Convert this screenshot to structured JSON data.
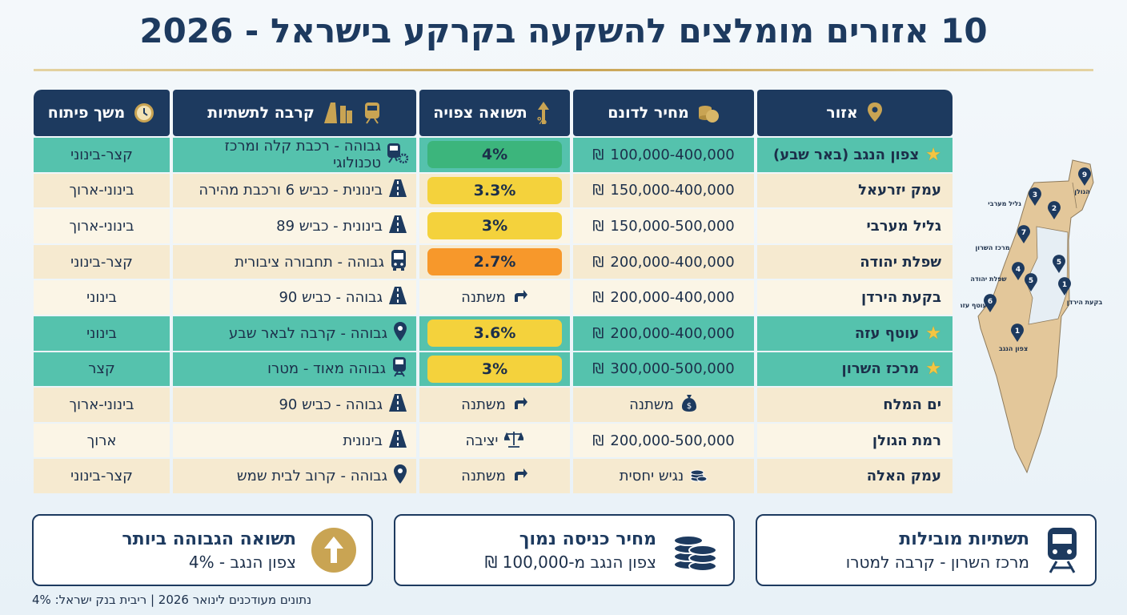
{
  "title": "10 אזורים מומלצים להשקעה בקרקע בישראל - 2026",
  "currency": "₪",
  "headers": {
    "region": "אזור",
    "price": "מחיר לדונם",
    "return": "תשואה צפויה",
    "infra": "קרבה לתשתיות",
    "duration": "משך פיתוח"
  },
  "rows": [
    {
      "region": "צפון הנגב (באר שבע)",
      "starred": true,
      "price": "100,000-400,000",
      "price_icon": "",
      "ret": "4%",
      "ret_color": "#3cb57c",
      "ret_icon": "",
      "infra_icon": "train-gear-icon",
      "infra": "גבוהה - רכבת קלה ומרכז טכנולוגי",
      "duration": "קצר-בינוני"
    },
    {
      "region": "עמק יזרעאל",
      "starred": false,
      "price": "150,000-400,000",
      "price_icon": "",
      "ret": "3.3%",
      "ret_color": "#f4d23c",
      "ret_icon": "",
      "infra_icon": "road-icon",
      "infra": "בינונית - כביש 6 ורכבת מהירה",
      "duration": "בינוני-ארוך"
    },
    {
      "region": "גליל מערבי",
      "starred": false,
      "price": "150,000-500,000",
      "price_icon": "",
      "ret": "3%",
      "ret_color": "#f4d23c",
      "ret_icon": "",
      "infra_icon": "road-icon",
      "infra": "בינונית - כביש 89",
      "duration": "בינוני-ארוך"
    },
    {
      "region": "שפלת יהודה",
      "starred": false,
      "price": "200,000-400,000",
      "price_icon": "",
      "ret": "2.7%",
      "ret_color": "#f7982b",
      "ret_icon": "",
      "infra_icon": "bus-icon",
      "infra": "גבוהה - תחבורה ציבורית",
      "duration": "קצר-בינוני"
    },
    {
      "region": "בקעת הירדן",
      "starred": false,
      "price": "200,000-400,000",
      "price_icon": "",
      "ret": "משתנה",
      "ret_color": "",
      "ret_icon": "arrow-icon",
      "infra_icon": "road-icon",
      "infra": "גבוהה - כביש 90",
      "duration": "בינוני"
    },
    {
      "region": "עוטף עזה",
      "starred": true,
      "price": "200,000-400,000",
      "price_icon": "",
      "ret": "3.6%",
      "ret_color": "#f4d23c",
      "ret_icon": "",
      "infra_icon": "pin-icon",
      "infra": "גבוהה - קרבה לבאר שבע",
      "duration": "בינוני"
    },
    {
      "region": "מרכז השרון",
      "starred": true,
      "price": "300,000-500,000",
      "price_icon": "",
      "ret": "3%",
      "ret_color": "#f4d23c",
      "ret_icon": "",
      "infra_icon": "train-icon",
      "infra": "גבוהה מאוד - מטרו",
      "duration": "קצר"
    },
    {
      "region": "ים המלח",
      "starred": false,
      "price": "משתנה",
      "price_icon": "money-bag-icon",
      "ret": "משתנה",
      "ret_color": "",
      "ret_icon": "arrow-icon",
      "infra_icon": "road-icon",
      "infra": "גבוהה - כביש 90",
      "duration": "בינוני-ארוך"
    },
    {
      "region": "רמת הגולן",
      "starred": false,
      "price": "200,000-500,000",
      "price_icon": "",
      "ret": "יציבה",
      "ret_color": "",
      "ret_icon": "scale-icon",
      "infra_icon": "road-icon",
      "infra": "בינונית",
      "duration": "ארוך"
    },
    {
      "region": "עמק האלה",
      "starred": false,
      "price": "נגיש יחסית",
      "price_icon": "coins-icon",
      "ret": "משתנה",
      "ret_color": "",
      "ret_icon": "arrow-icon",
      "infra_icon": "pin-icon",
      "infra": "גבוהה - קרוב לבית שמש",
      "duration": "קצר-בינוני"
    }
  ],
  "map": {
    "pins": [
      "9",
      "3",
      "2",
      "7",
      "4",
      "5",
      "5",
      "1",
      "6",
      "1"
    ],
    "labels": [
      "הגולן",
      "גליל מערבי",
      "מרכז השרון",
      "שפלת יהודה",
      "בקעת הירדן",
      "עוטף עזה",
      "צפון הנגב"
    ]
  },
  "cards": [
    {
      "title": "תשתיות מובילות",
      "subtitle": "מרכז השרון - קרבה למטרו"
    },
    {
      "title": "מחיר כניסה נמוך",
      "subtitle": "צפון הנגב מ-100,000 ₪"
    },
    {
      "title": "תשואה הגבוהה ביותר",
      "subtitle": "צפון הנגב - 4%"
    }
  ],
  "footer": "נתונים מעודכנים לינואר 2026 | ריבית בנק ישראל: 4%",
  "colors": {
    "navy": "#1d3a5f",
    "gold": "#c9a453",
    "teal": "#55c2ad"
  }
}
